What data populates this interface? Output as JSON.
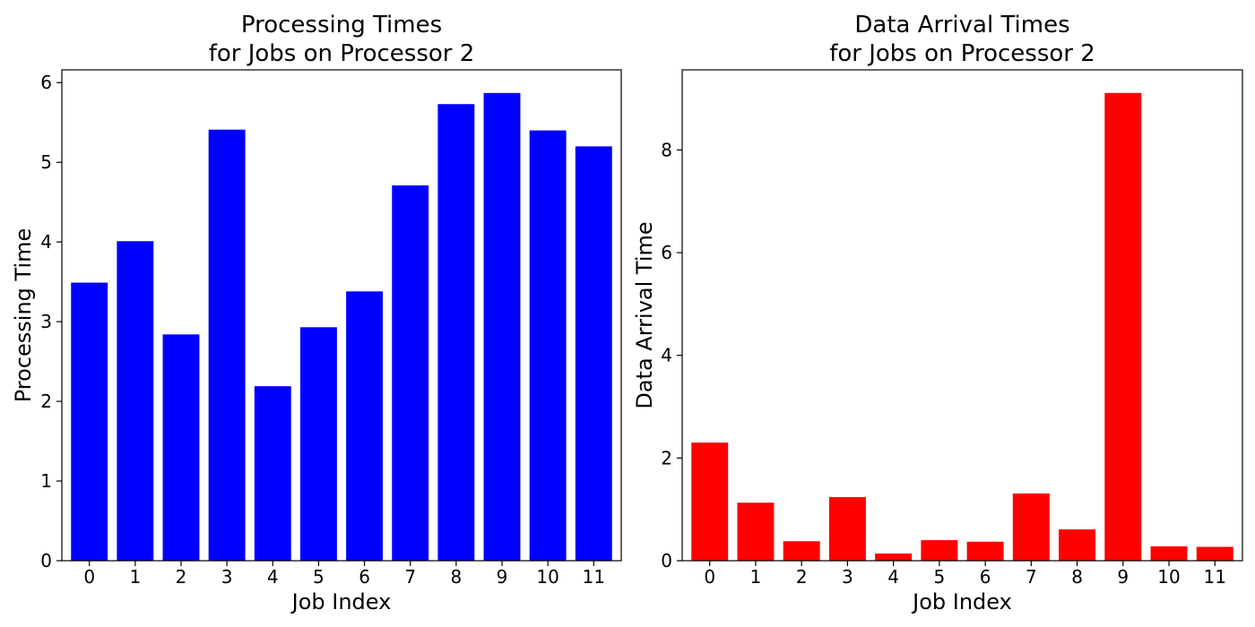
{
  "chart_data": [
    {
      "type": "bar",
      "title_lines": [
        "Processing Times",
        "for Jobs on Processor 2"
      ],
      "xlabel": "Job Index",
      "ylabel": "Processing Time",
      "categories": [
        "0",
        "1",
        "2",
        "3",
        "4",
        "5",
        "6",
        "7",
        "8",
        "9",
        "10",
        "11"
      ],
      "values": [
        3.49,
        4.01,
        2.84,
        5.41,
        2.19,
        2.93,
        3.38,
        4.71,
        5.73,
        5.87,
        5.4,
        5.2
      ],
      "ylim": [
        0,
        6.16
      ],
      "yticks": [
        0,
        1,
        2,
        3,
        4,
        5,
        6
      ],
      "color": "#0000ff",
      "grid": false,
      "legend": false
    },
    {
      "type": "bar",
      "title_lines": [
        "Data Arrival Times",
        "for Jobs on Processor 2"
      ],
      "xlabel": "Job Index",
      "ylabel": "Data Arrival Time",
      "categories": [
        "0",
        "1",
        "2",
        "3",
        "4",
        "5",
        "6",
        "7",
        "8",
        "9",
        "10",
        "11"
      ],
      "values": [
        2.3,
        1.13,
        0.38,
        1.24,
        0.14,
        0.4,
        0.37,
        1.31,
        0.61,
        9.11,
        0.28,
        0.27
      ],
      "ylim": [
        0,
        9.56
      ],
      "yticks": [
        0,
        2,
        4,
        6,
        8
      ],
      "color": "#ff0000",
      "grid": false,
      "legend": false
    }
  ]
}
